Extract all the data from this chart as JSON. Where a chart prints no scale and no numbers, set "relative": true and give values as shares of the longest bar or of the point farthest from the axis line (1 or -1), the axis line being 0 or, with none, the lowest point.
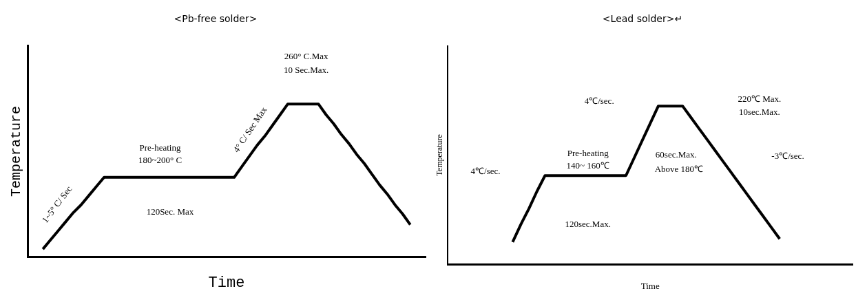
{
  "chart_data": [
    {
      "type": "line",
      "title": "<Pb-free solder>",
      "xlabel": "Time",
      "ylabel": "Temperature",
      "relative": true,
      "grid": false,
      "legend": false,
      "marker": "none",
      "line_style": "solid",
      "categories": [
        null,
        null,
        null,
        null,
        null,
        null,
        null,
        null,
        null,
        null,
        null,
        null,
        null,
        null,
        null,
        null,
        null,
        null,
        null,
        null,
        null,
        null,
        null,
        null,
        null,
        null,
        null,
        null,
        null,
        null,
        null,
        null,
        null,
        null,
        null,
        null,
        null,
        null,
        null,
        null,
        null,
        null,
        null,
        null,
        null,
        null,
        null,
        null,
        null,
        null,
        null,
        null,
        null
      ],
      "series": [
        {
          "color": "#000000",
          "values": [
            null,
            null,
            0.05,
            0.11,
            0.17,
            0.23,
            0.29,
            0.34,
            0.4,
            0.46,
            0.52,
            0.52,
            0.52,
            0.52,
            0.52,
            0.52,
            0.52,
            0.52,
            0.52,
            0.52,
            0.52,
            0.52,
            0.52,
            0.52,
            0.52,
            0.52,
            0.52,
            0.52,
            0.59,
            0.66,
            0.73,
            0.79,
            0.86,
            0.93,
            1,
            1,
            1,
            1,
            1,
            0.93,
            0.87,
            0.8,
            0.74,
            0.67,
            0.61,
            0.54,
            0.47,
            0.41,
            0.34,
            0.28,
            0.21,
            null,
            null
          ]
        }
      ],
      "annotations": [
        "260° C.Max",
        "10 Sec.Max.",
        "Pre-heating",
        "180~200° C",
        "120Sec. Max",
        "1~5° C/ Sec",
        "4° C/ Sec Max"
      ]
    },
    {
      "type": "line",
      "title": "<Lead solder>↵",
      "xlabel": "Time",
      "ylabel": "Temperature",
      "relative": true,
      "grid": false,
      "legend": false,
      "marker": "none",
      "line_style": "solid",
      "categories": [
        null,
        null,
        null,
        null,
        null,
        null,
        null,
        null,
        null,
        null,
        null,
        null,
        null,
        null,
        null,
        null,
        null,
        null,
        null,
        null,
        null,
        null,
        null,
        null,
        null,
        null,
        null,
        null,
        null,
        null,
        null,
        null,
        null,
        null,
        null,
        null,
        null,
        null,
        null,
        null,
        null,
        null,
        null,
        null,
        null,
        null,
        null,
        null,
        null,
        null,
        null
      ],
      "series": [
        {
          "color": "#000000",
          "values": [
            null,
            null,
            null,
            null,
            null,
            null,
            null,
            null,
            0.14,
            0.25,
            0.35,
            0.46,
            0.56,
            0.56,
            0.56,
            0.56,
            0.56,
            0.56,
            0.56,
            0.56,
            0.56,
            0.56,
            0.56,
            0.67,
            0.78,
            0.89,
            1,
            1,
            1,
            1,
            0.93,
            0.86,
            0.79,
            0.72,
            0.65,
            0.58,
            0.51,
            0.44,
            0.37,
            0.3,
            0.23,
            0.16,
            null,
            null,
            null,
            null,
            null,
            null,
            null,
            null,
            null
          ]
        }
      ],
      "annotations": [
        "4℃/sec.",
        "220℃ Max.",
        "10sec.Max.",
        "Pre-heating",
        "140~ 160℃",
        "60sec.Max.",
        "Above 180℃",
        "4℃/sec.",
        "120sec.Max.",
        "-3℃/sec."
      ]
    }
  ]
}
